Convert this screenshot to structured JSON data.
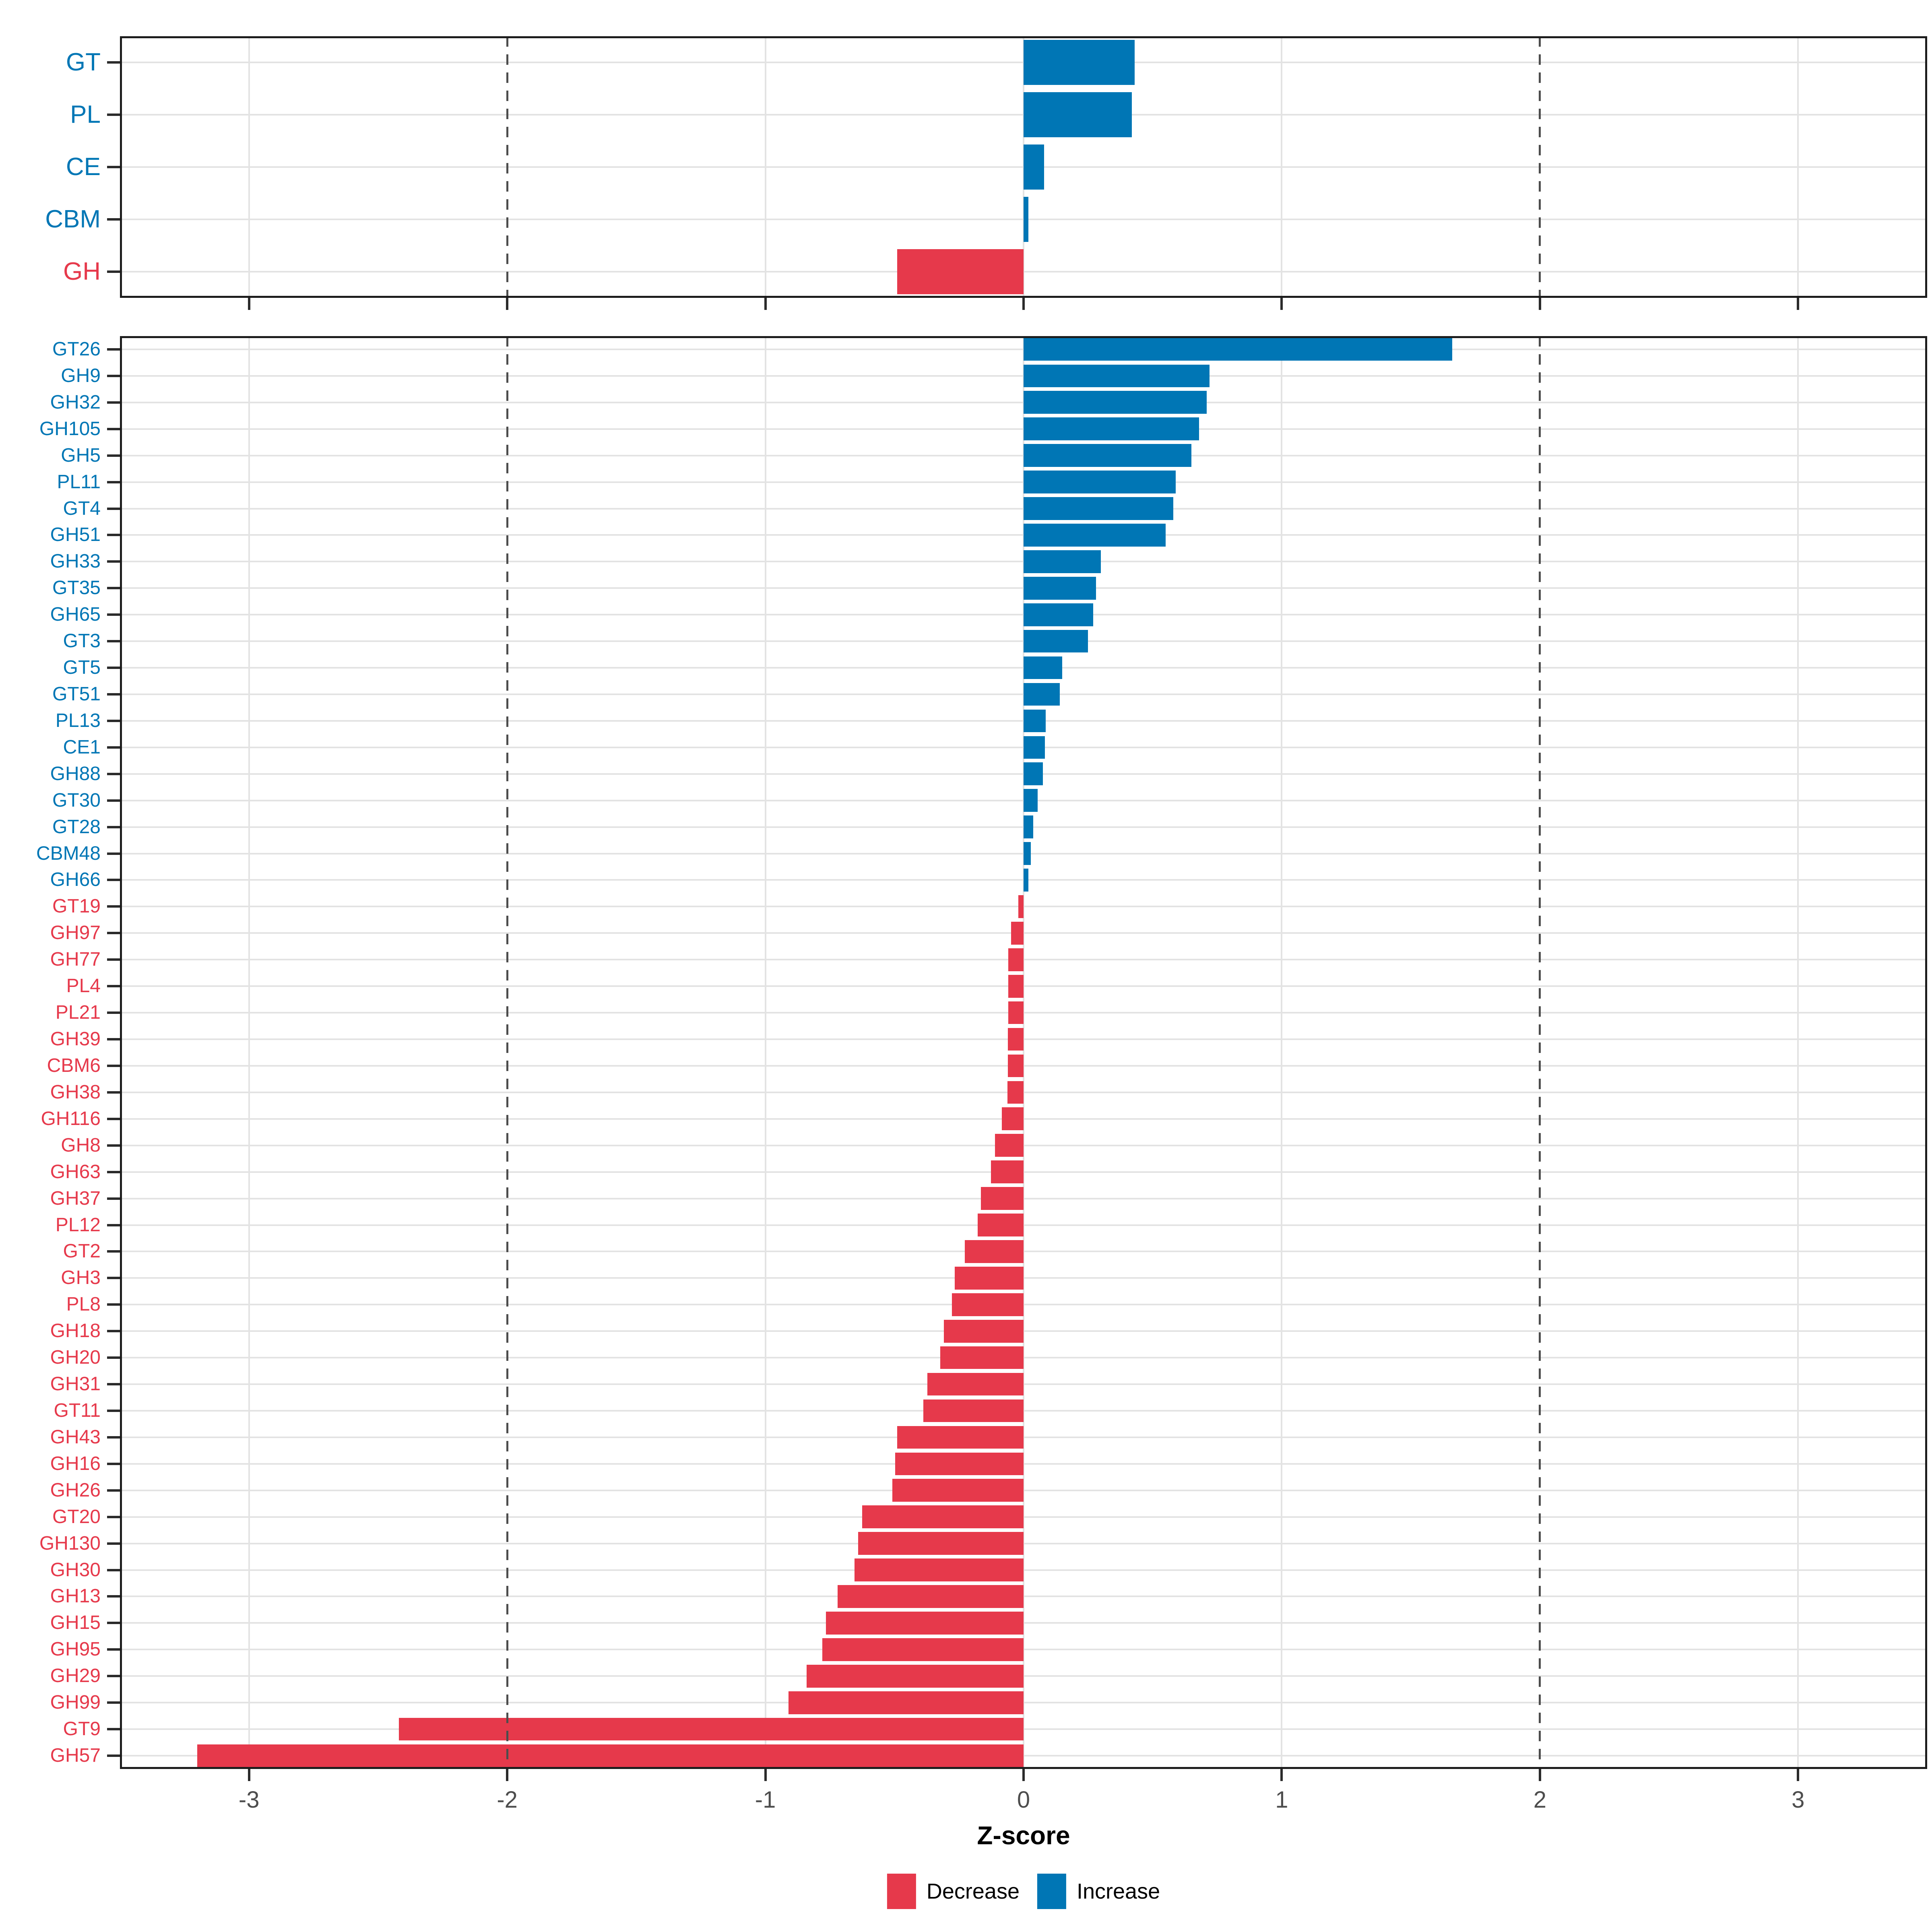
{
  "axis": {
    "title": "Z-score",
    "tick_labels": [
      "-3",
      "-2",
      "-1",
      "0",
      "1",
      "2",
      "3"
    ],
    "tick_values": [
      -3,
      -2,
      -1,
      0,
      1,
      2,
      3
    ],
    "xmin": -3.5,
    "xmax": 3.5,
    "dashed_vlines": [
      -2,
      2
    ]
  },
  "legend": {
    "decrease_label": "Decrease",
    "increase_label": "Increase"
  },
  "colors": {
    "decrease": "#e6394b",
    "increase": "#0076b5",
    "grid": "#e3e3e3",
    "dashed_line": "#4d4d4d",
    "frame": "#1c1c1c",
    "tick_mark": "#2b2b2b",
    "tick_text": "#4d4d4d",
    "background": "#ffffff"
  },
  "chart_data": [
    {
      "type": "bar",
      "orientation": "horizontal",
      "panel": "cazyme-classes",
      "categories": [
        "GT",
        "PL",
        "CE",
        "CBM",
        "GH"
      ],
      "values": [
        0.43,
        0.42,
        0.08,
        0.018,
        -0.49
      ],
      "xlim": [
        -3.5,
        3.5
      ],
      "grid": true,
      "legend_position": "bottom"
    },
    {
      "type": "bar",
      "orientation": "horizontal",
      "panel": "cazyme-families",
      "categories": [
        "GT26",
        "GH9",
        "GH32",
        "GH105",
        "GH5",
        "PL11",
        "GT4",
        "GH51",
        "GH33",
        "GT35",
        "GH65",
        "GT3",
        "GT5",
        "GT51",
        "PL13",
        "CE1",
        "GH88",
        "GT30",
        "GT28",
        "CBM48",
        "GH66",
        "GT19",
        "GH97",
        "GH77",
        "PL4",
        "PL21",
        "GH39",
        "CBM6",
        "GH38",
        "GH116",
        "GH8",
        "GH63",
        "GH37",
        "PL12",
        "GT2",
        "GH3",
        "PL8",
        "GH18",
        "GH20",
        "GH31",
        "GT11",
        "GH43",
        "GH16",
        "GH26",
        "GT20",
        "GH130",
        "GH30",
        "GH13",
        "GH15",
        "GH95",
        "GH29",
        "GH99",
        "GT9",
        "GH57"
      ],
      "values": [
        1.66,
        0.72,
        0.71,
        0.68,
        0.65,
        0.59,
        0.58,
        0.55,
        0.3,
        0.28,
        0.27,
        0.25,
        0.15,
        0.14,
        0.085,
        0.082,
        0.075,
        0.054,
        0.038,
        0.028,
        0.018,
        -0.02,
        -0.048,
        -0.059,
        -0.06,
        -0.06,
        -0.061,
        -0.061,
        -0.062,
        -0.084,
        -0.11,
        -0.127,
        -0.165,
        -0.178,
        -0.228,
        -0.267,
        -0.277,
        -0.308,
        -0.322,
        -0.373,
        -0.388,
        -0.49,
        -0.497,
        -0.508,
        -0.625,
        -0.64,
        -0.655,
        -0.72,
        -0.765,
        -0.78,
        -0.84,
        -0.91,
        -2.42,
        -3.2
      ],
      "xlim": [
        -3.5,
        3.5
      ],
      "grid": true,
      "legend_position": "bottom"
    }
  ]
}
